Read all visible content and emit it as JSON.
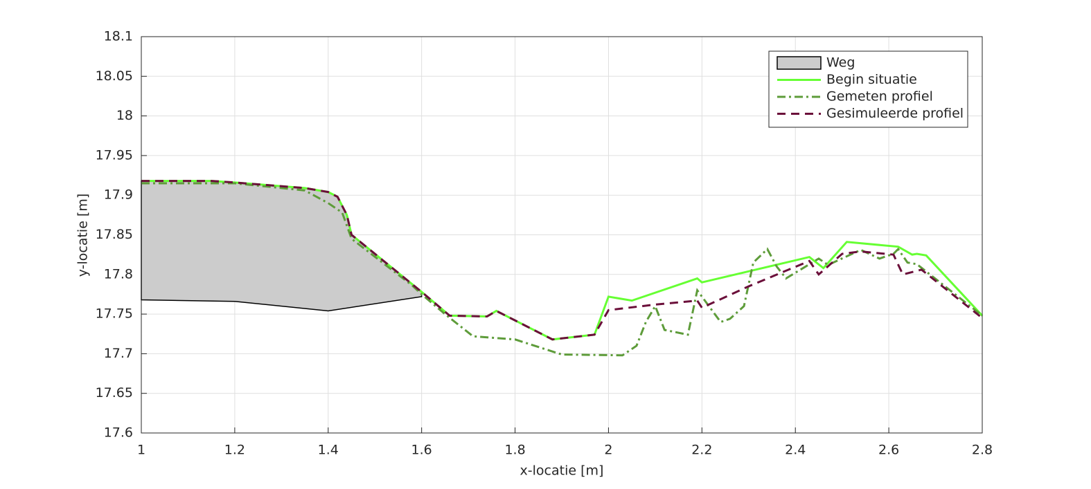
{
  "chart_data": {
    "type": "line",
    "xlabel": "x-locatie [m]",
    "ylabel": "y-locatie [m]",
    "xlim": [
      1,
      2.8
    ],
    "ylim": [
      17.6,
      18.1
    ],
    "xticks": [
      1,
      1.2,
      1.4,
      1.6,
      1.8,
      2,
      2.2,
      2.4,
      2.6,
      2.8
    ],
    "yticks": [
      17.6,
      17.65,
      17.7,
      17.75,
      17.8,
      17.85,
      17.9,
      17.95,
      18,
      18.05,
      18.1
    ],
    "grid": true,
    "legend": "top-right",
    "series": [
      {
        "name": "Weg",
        "kind": "area",
        "color": "#cccccc",
        "edge": "#000000",
        "x": [
          1,
          1.15,
          1.2,
          1.35,
          1.4,
          1.42,
          1.44,
          1.45,
          1.6,
          1.6,
          1.4,
          1.2,
          1
        ],
        "values": [
          17.918,
          17.918,
          17.916,
          17.909,
          17.904,
          17.898,
          17.875,
          17.85,
          17.778,
          17.772,
          17.754,
          17.766,
          17.768
        ]
      },
      {
        "name": "Begin situatie",
        "kind": "solid",
        "color": "#66ff33",
        "x": [
          1,
          1.15,
          1.2,
          1.35,
          1.4,
          1.42,
          1.44,
          1.45,
          1.6,
          1.66,
          1.74,
          1.76,
          1.88,
          1.97,
          2,
          2.05,
          2.19,
          2.2,
          2.43,
          2.46,
          2.51,
          2.62,
          2.65,
          2.66,
          2.68,
          2.8
        ],
        "values": [
          17.918,
          17.918,
          17.916,
          17.909,
          17.904,
          17.898,
          17.875,
          17.85,
          17.778,
          17.748,
          17.747,
          17.754,
          17.718,
          17.724,
          17.772,
          17.767,
          17.795,
          17.79,
          17.822,
          17.808,
          17.841,
          17.835,
          17.825,
          17.826,
          17.824,
          17.748
        ]
      },
      {
        "name": "Gemeten profiel",
        "kind": "dashdot",
        "color": "#5e9c3a",
        "x": [
          1,
          1.2,
          1.35,
          1.4,
          1.43,
          1.45,
          1.58,
          1.6,
          1.65,
          1.71,
          1.8,
          1.9,
          2.03,
          2.06,
          2.08,
          2.1,
          2.12,
          2.17,
          2.19,
          2.24,
          2.26,
          2.29,
          2.31,
          2.34,
          2.36,
          2.38,
          2.45,
          2.47,
          2.54,
          2.58,
          2.61,
          2.62,
          2.64,
          2.66,
          2.8
        ],
        "values": [
          17.915,
          17.915,
          17.906,
          17.89,
          17.878,
          17.845,
          17.786,
          17.775,
          17.75,
          17.722,
          17.718,
          17.699,
          17.698,
          17.71,
          17.74,
          17.76,
          17.73,
          17.724,
          17.78,
          17.74,
          17.744,
          17.76,
          17.815,
          17.832,
          17.81,
          17.795,
          17.82,
          17.812,
          17.831,
          17.82,
          17.826,
          17.832,
          17.815,
          17.813,
          17.748
        ]
      },
      {
        "name": "Gesimuleerde profiel",
        "kind": "dashed",
        "color": "#6b0f3a",
        "x": [
          1,
          1.15,
          1.2,
          1.35,
          1.4,
          1.42,
          1.44,
          1.45,
          1.6,
          1.66,
          1.74,
          1.76,
          1.88,
          1.97,
          2,
          2.1,
          2.19,
          2.2,
          2.3,
          2.43,
          2.45,
          2.5,
          2.54,
          2.61,
          2.63,
          2.67,
          2.8
        ],
        "values": [
          17.918,
          17.918,
          17.916,
          17.909,
          17.904,
          17.898,
          17.875,
          17.85,
          17.778,
          17.748,
          17.747,
          17.754,
          17.718,
          17.724,
          17.755,
          17.762,
          17.767,
          17.758,
          17.785,
          17.817,
          17.8,
          17.826,
          17.829,
          17.825,
          17.8,
          17.806,
          17.745
        ]
      }
    ]
  }
}
